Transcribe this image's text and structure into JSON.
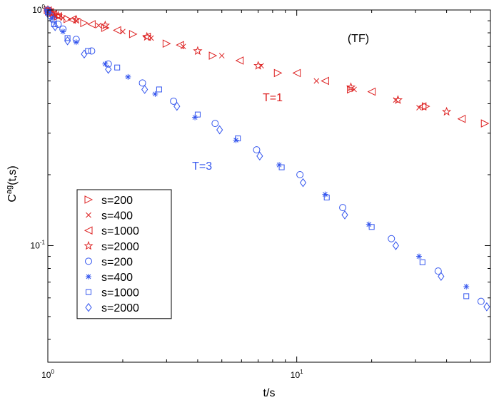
{
  "chart_data": {
    "type": "scatter",
    "title": "",
    "xlabel": "t/s",
    "ylabel_base": "C",
    "ylabel_sup": "ag",
    "ylabel_args": "(t,s)",
    "xscale": "log",
    "yscale": "log",
    "xlim": [
      1,
      60
    ],
    "ylim": [
      0.032,
      1.0
    ],
    "x_ticks": [
      {
        "value": 1,
        "base": "10",
        "exp": "0"
      },
      {
        "value": 10,
        "base": "10",
        "exp": "1"
      }
    ],
    "y_ticks": [
      {
        "value": 0.1,
        "base": "10",
        "exp": "-1"
      },
      {
        "value": 1,
        "base": "10",
        "exp": "0"
      }
    ],
    "annotations": [
      {
        "text": "(TF)",
        "x": 16,
        "y": 0.73,
        "color": "#000000"
      },
      {
        "text": "T=1",
        "x": 7.3,
        "y": 0.41,
        "color": "#dd2222"
      },
      {
        "text": "T=3",
        "x": 3.8,
        "y": 0.21,
        "color": "#3355ee"
      }
    ],
    "legend": {
      "position": "lower-left"
    },
    "series": [
      {
        "name": "s=200",
        "color": "#dd2222",
        "marker": "triangle-right",
        "points": [
          [
            1.0,
            1.0
          ],
          [
            1.01,
            0.985
          ],
          [
            1.03,
            0.97
          ],
          [
            1.06,
            0.955
          ],
          [
            1.1,
            0.94
          ],
          [
            1.2,
            0.915
          ],
          [
            1.4,
            0.88
          ],
          [
            1.7,
            0.84
          ],
          [
            2.2,
            0.79
          ],
          [
            3,
            0.72
          ],
          [
            4.6,
            0.64
          ],
          [
            8.4,
            0.54
          ],
          [
            16.5,
            0.46
          ],
          [
            33,
            0.39
          ],
          [
            57,
            0.33
          ]
        ]
      },
      {
        "name": "s=400",
        "color": "#dd2222",
        "marker": "x",
        "points": [
          [
            1.0,
            1.0
          ],
          [
            1.01,
            0.985
          ],
          [
            1.03,
            0.965
          ],
          [
            1.08,
            0.945
          ],
          [
            1.15,
            0.925
          ],
          [
            1.3,
            0.9
          ],
          [
            1.6,
            0.86
          ],
          [
            2,
            0.81
          ],
          [
            2.6,
            0.76
          ],
          [
            3.5,
            0.7
          ],
          [
            5,
            0.64
          ],
          [
            7.2,
            0.58
          ],
          [
            12,
            0.5
          ],
          [
            17,
            0.46
          ],
          [
            25,
            0.415
          ],
          [
            31,
            0.385
          ]
        ]
      },
      {
        "name": "s=1000",
        "color": "#dd2222",
        "marker": "triangle-left",
        "points": [
          [
            1.0,
            0.995
          ],
          [
            1.02,
            0.98
          ],
          [
            1.05,
            0.96
          ],
          [
            1.1,
            0.94
          ],
          [
            1.25,
            0.91
          ],
          [
            1.5,
            0.87
          ],
          [
            1.9,
            0.82
          ],
          [
            2.5,
            0.77
          ],
          [
            3.4,
            0.71
          ],
          [
            5.9,
            0.61
          ],
          [
            10,
            0.54
          ],
          [
            13,
            0.5
          ],
          [
            20,
            0.45
          ],
          [
            32,
            0.39
          ],
          [
            46,
            0.345
          ]
        ]
      },
      {
        "name": "s=2000",
        "color": "#dd2222",
        "marker": "star",
        "points": [
          [
            1.0,
            1.0
          ],
          [
            1.01,
            0.99
          ],
          [
            1.04,
            0.97
          ],
          [
            1.1,
            0.945
          ],
          [
            1.3,
            0.91
          ],
          [
            1.7,
            0.86
          ],
          [
            2.5,
            0.77
          ],
          [
            4,
            0.67
          ],
          [
            7,
            0.58
          ],
          [
            16.5,
            0.47
          ],
          [
            25.5,
            0.415
          ],
          [
            40,
            0.37
          ]
        ]
      },
      {
        "name": "s=200",
        "color": "#3355ee",
        "marker": "circle",
        "points": [
          [
            1.0,
            1.0
          ],
          [
            1.02,
            0.95
          ],
          [
            1.05,
            0.91
          ],
          [
            1.1,
            0.87
          ],
          [
            1.15,
            0.83
          ],
          [
            1.3,
            0.75
          ],
          [
            1.5,
            0.67
          ],
          [
            1.75,
            0.59
          ],
          [
            2.4,
            0.49
          ],
          [
            3.2,
            0.41
          ],
          [
            4.7,
            0.33
          ],
          [
            6.9,
            0.255
          ],
          [
            10.3,
            0.2
          ],
          [
            15.3,
            0.145
          ],
          [
            24,
            0.107
          ],
          [
            37,
            0.078
          ],
          [
            55,
            0.058
          ]
        ]
      },
      {
        "name": "s=400",
        "color": "#3355ee",
        "marker": "asterisk",
        "points": [
          [
            1.0,
            0.99
          ],
          [
            1.04,
            0.92
          ],
          [
            1.15,
            0.81
          ],
          [
            1.3,
            0.73
          ],
          [
            1.7,
            0.59
          ],
          [
            2.1,
            0.52
          ],
          [
            2.7,
            0.44
          ],
          [
            3.9,
            0.35
          ],
          [
            5.7,
            0.28
          ],
          [
            8.5,
            0.22
          ],
          [
            13,
            0.165
          ],
          [
            19.5,
            0.123
          ],
          [
            31,
            0.09
          ],
          [
            48,
            0.067
          ]
        ]
      },
      {
        "name": "s=1000",
        "color": "#3355ee",
        "marker": "square",
        "points": [
          [
            1.0,
            0.98
          ],
          [
            1.06,
            0.87
          ],
          [
            1.2,
            0.76
          ],
          [
            1.45,
            0.67
          ],
          [
            1.9,
            0.57
          ],
          [
            2.8,
            0.46
          ],
          [
            4,
            0.36
          ],
          [
            5.8,
            0.285
          ],
          [
            8.7,
            0.215
          ],
          [
            13.2,
            0.16
          ],
          [
            20,
            0.12
          ],
          [
            32,
            0.085
          ],
          [
            48,
            0.061
          ]
        ]
      },
      {
        "name": "s=2000",
        "color": "#3355ee",
        "marker": "diamond",
        "points": [
          [
            1.0,
            0.97
          ],
          [
            1.07,
            0.85
          ],
          [
            1.2,
            0.74
          ],
          [
            1.4,
            0.65
          ],
          [
            1.75,
            0.56
          ],
          [
            2.45,
            0.46
          ],
          [
            3.3,
            0.39
          ],
          [
            4.9,
            0.31
          ],
          [
            7.1,
            0.24
          ],
          [
            10.6,
            0.185
          ],
          [
            15.6,
            0.135
          ],
          [
            25,
            0.1
          ],
          [
            38,
            0.074
          ],
          [
            58,
            0.055
          ]
        ]
      }
    ]
  }
}
